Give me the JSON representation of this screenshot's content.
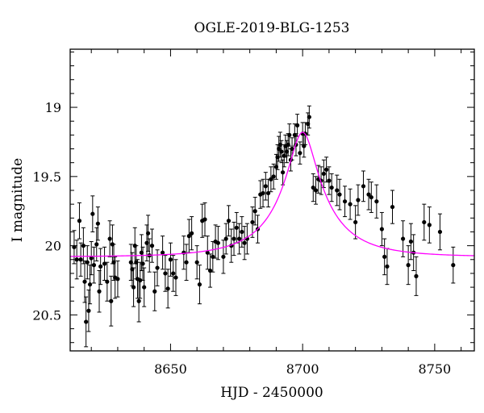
{
  "chart_data": {
    "type": "scatter",
    "title": "OGLE-2019-BLG-1253",
    "xlabel": "HJD - 2450000",
    "ylabel": "I magnitude",
    "xlim": [
      8612,
      8765
    ],
    "ylim": [
      20.76,
      18.58
    ],
    "y_inverted": true,
    "x_ticks": [
      8650,
      8700,
      8750
    ],
    "x_tick_labels": [
      "8650",
      "8700",
      "8750"
    ],
    "y_ticks": [
      19,
      19.5,
      20,
      20.5
    ],
    "y_tick_labels": [
      "19",
      "19.5",
      "20",
      "20.5"
    ],
    "grid": false,
    "colors": {
      "points": "#000000",
      "model": "#ff00ff"
    },
    "series": [
      {
        "kind": "points-with-errorbars",
        "points": [
          [
            8613.5,
            20.01,
            0.12
          ],
          [
            8614.5,
            20.1,
            0.14
          ],
          [
            8615.5,
            19.82,
            0.13
          ],
          [
            8616,
            20.1,
            0.12
          ],
          [
            8617,
            20.0,
            0.13
          ],
          [
            8617.5,
            20.26,
            0.15
          ],
          [
            8618,
            20.55,
            0.18
          ],
          [
            8618.5,
            20.12,
            0.12
          ],
          [
            8619,
            20.47,
            0.15
          ],
          [
            8619.5,
            20.28,
            0.14
          ],
          [
            8620,
            20.09,
            0.12
          ],
          [
            8620.5,
            19.77,
            0.13
          ],
          [
            8621,
            20.14,
            0.13
          ],
          [
            8622,
            19.99,
            0.12
          ],
          [
            8622.5,
            19.84,
            0.12
          ],
          [
            8623,
            20.33,
            0.15
          ],
          [
            8623.5,
            20.15,
            0.13
          ],
          [
            8625,
            20.13,
            0.12
          ],
          [
            8626,
            20.26,
            0.14
          ],
          [
            8627,
            19.95,
            0.13
          ],
          [
            8627.5,
            20.4,
            0.18
          ],
          [
            8628,
            19.99,
            0.14
          ],
          [
            8628.5,
            20.12,
            0.13
          ],
          [
            8629,
            20.23,
            0.15
          ],
          [
            8630,
            20.24,
            0.13
          ],
          [
            8635,
            20.12,
            0.13
          ],
          [
            8635.5,
            20.17,
            0.12
          ],
          [
            8636,
            20.3,
            0.14
          ],
          [
            8636.5,
            20.0,
            0.13
          ],
          [
            8637,
            20.12,
            0.12
          ],
          [
            8637.5,
            20.24,
            0.14
          ],
          [
            8638,
            20.4,
            0.15
          ],
          [
            8638.5,
            20.25,
            0.13
          ],
          [
            8639,
            20.05,
            0.13
          ],
          [
            8639.5,
            20.13,
            0.12
          ],
          [
            8640,
            20.3,
            0.14
          ],
          [
            8641,
            19.98,
            0.13
          ],
          [
            8641.5,
            19.91,
            0.13
          ],
          [
            8642,
            20.07,
            0.12
          ],
          [
            8643,
            20.0,
            0.12
          ],
          [
            8644,
            20.33,
            0.14
          ],
          [
            8645,
            20.16,
            0.13
          ],
          [
            8647,
            20.05,
            0.12
          ],
          [
            8648,
            20.2,
            0.13
          ],
          [
            8649,
            20.31,
            0.14
          ],
          [
            8650,
            20.1,
            0.12
          ],
          [
            8651,
            20.2,
            0.13
          ],
          [
            8652,
            20.23,
            0.13
          ],
          [
            8655,
            20.05,
            0.12
          ],
          [
            8656,
            20.12,
            0.13
          ],
          [
            8657,
            19.93,
            0.12
          ],
          [
            8658,
            19.91,
            0.12
          ],
          [
            8660,
            20.12,
            0.12
          ],
          [
            8661,
            20.28,
            0.14
          ],
          [
            8662,
            19.82,
            0.12
          ],
          [
            8663,
            19.81,
            0.12
          ],
          [
            8664,
            20.05,
            0.12
          ],
          [
            8665,
            20.18,
            0.12
          ],
          [
            8666,
            20.08,
            0.11
          ],
          [
            8667,
            19.97,
            0.12
          ],
          [
            8668,
            19.98,
            0.12
          ],
          [
            8670,
            20.08,
            0.12
          ],
          [
            8671,
            19.95,
            0.11
          ],
          [
            8672,
            19.82,
            0.11
          ],
          [
            8673,
            20.0,
            0.12
          ],
          [
            8674,
            19.95,
            0.12
          ],
          [
            8675,
            19.87,
            0.11
          ],
          [
            8676,
            19.95,
            0.11
          ],
          [
            8677,
            19.9,
            0.11
          ],
          [
            8678,
            19.98,
            0.12
          ],
          [
            8679,
            19.95,
            0.11
          ],
          [
            8681,
            19.83,
            0.11
          ],
          [
            8682,
            19.75,
            0.1
          ],
          [
            8683,
            19.88,
            0.1
          ],
          [
            8684,
            19.63,
            0.1
          ],
          [
            8685,
            19.62,
            0.1
          ],
          [
            8686,
            19.57,
            0.1
          ],
          [
            8687,
            19.62,
            0.1
          ],
          [
            8688,
            19.52,
            0.09
          ],
          [
            8689,
            19.5,
            0.09
          ],
          [
            8690,
            19.43,
            0.09
          ],
          [
            8690.5,
            19.36,
            0.09
          ],
          [
            8691,
            19.3,
            0.09
          ],
          [
            8691.5,
            19.27,
            0.09
          ],
          [
            8692,
            19.32,
            0.08
          ],
          [
            8692.5,
            19.47,
            0.09
          ],
          [
            8693,
            19.35,
            0.08
          ],
          [
            8693.5,
            19.28,
            0.08
          ],
          [
            8694,
            19.32,
            0.08
          ],
          [
            8694.5,
            19.27,
            0.08
          ],
          [
            8695,
            19.2,
            0.08
          ],
          [
            8695.5,
            19.38,
            0.08
          ],
          [
            8696,
            19.3,
            0.08
          ],
          [
            8697,
            19.2,
            0.08
          ],
          [
            8697.5,
            19.27,
            0.08
          ],
          [
            8698,
            19.13,
            0.08
          ],
          [
            8699,
            19.33,
            0.08
          ],
          [
            8700,
            19.19,
            0.08
          ],
          [
            8700.5,
            19.28,
            0.08
          ],
          [
            8701,
            19.19,
            0.08
          ],
          [
            8702,
            19.12,
            0.08
          ],
          [
            8702.5,
            19.07,
            0.08
          ],
          [
            8704,
            19.58,
            0.1
          ],
          [
            8705,
            19.6,
            0.1
          ],
          [
            8706,
            19.52,
            0.1
          ],
          [
            8707,
            19.53,
            0.1
          ],
          [
            8708,
            19.48,
            0.1
          ],
          [
            8709,
            19.45,
            0.09
          ],
          [
            8710,
            19.53,
            0.1
          ],
          [
            8711,
            19.58,
            0.1
          ],
          [
            8713,
            19.6,
            0.11
          ],
          [
            8714,
            19.63,
            0.11
          ],
          [
            8716,
            19.68,
            0.11
          ],
          [
            8718,
            19.7,
            0.11
          ],
          [
            8720,
            19.83,
            0.12
          ],
          [
            8721,
            19.67,
            0.11
          ],
          [
            8723,
            19.57,
            0.11
          ],
          [
            8725,
            19.63,
            0.11
          ],
          [
            8726,
            19.65,
            0.11
          ],
          [
            8728,
            19.68,
            0.12
          ],
          [
            8730,
            19.88,
            0.12
          ],
          [
            8731,
            20.08,
            0.13
          ],
          [
            8732,
            20.15,
            0.13
          ],
          [
            8734,
            19.72,
            0.12
          ],
          [
            8738,
            19.95,
            0.13
          ],
          [
            8740,
            20.14,
            0.14
          ],
          [
            8741,
            19.97,
            0.13
          ],
          [
            8742,
            20.05,
            0.13
          ],
          [
            8743,
            20.22,
            0.14
          ],
          [
            8746,
            19.83,
            0.13
          ],
          [
            8748,
            19.85,
            0.13
          ],
          [
            8752,
            19.9,
            0.13
          ],
          [
            8757,
            20.14,
            0.13
          ]
        ]
      },
      {
        "kind": "model-curve",
        "peak_time": 8700,
        "peak_magnitude": 19.18,
        "baseline_magnitude": 20.08,
        "einstein_time": 23,
        "impact_parameter": 0.22
      }
    ]
  }
}
